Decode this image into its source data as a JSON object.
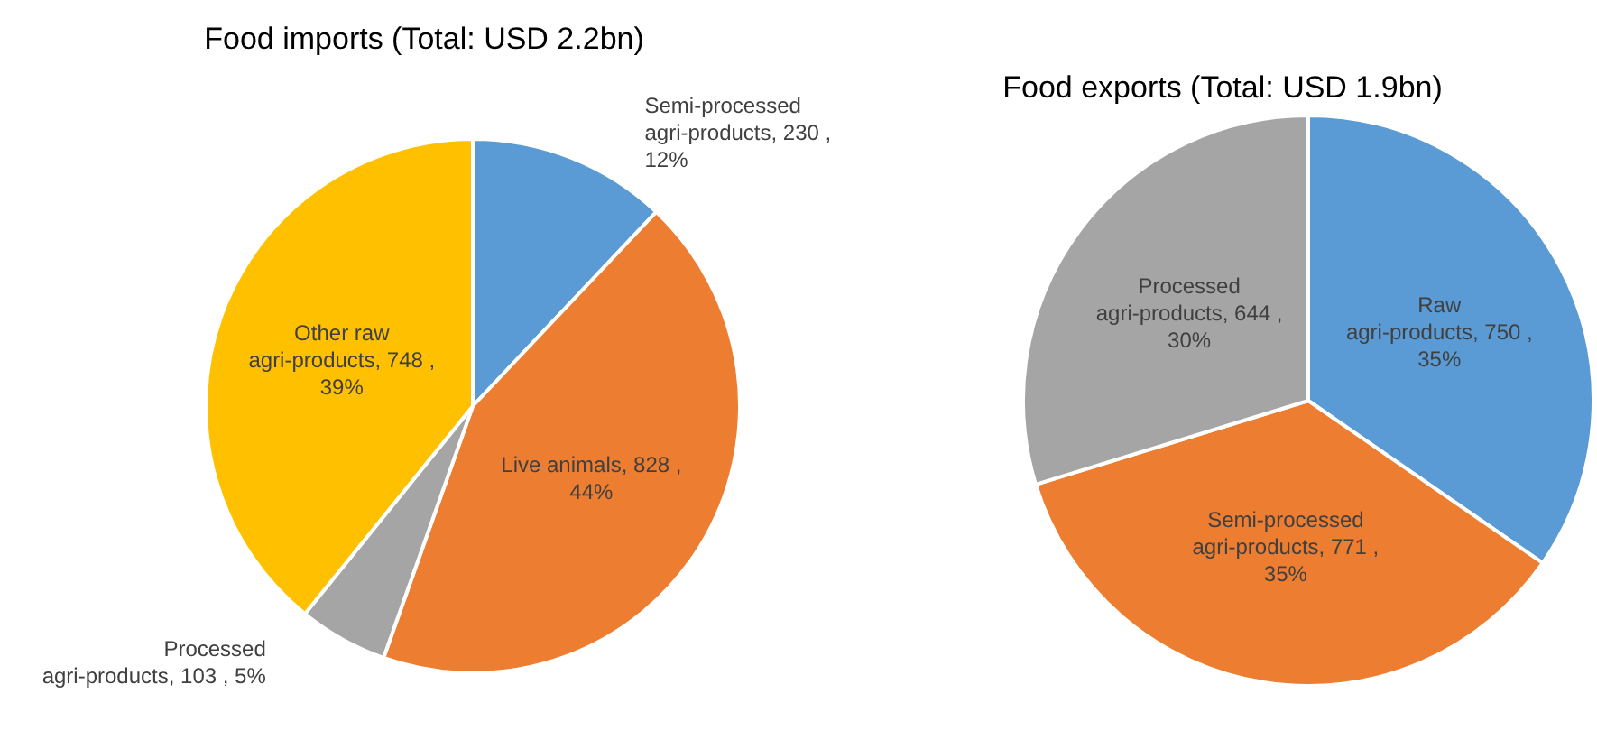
{
  "chart_data": [
    {
      "type": "pie",
      "title": "Food imports (Total: USD 2.2bn)",
      "categories": [
        "Semi-processed agri-products",
        "Live animals",
        "Processed agri-products",
        "Other raw agri-products"
      ],
      "values": [
        230,
        828,
        103,
        748
      ],
      "value_labels": [
        "230 , 12%",
        "828 , 44%",
        "103 , 5%",
        "748 , 39%"
      ],
      "colors": [
        "#5b9bd5",
        "#ed7d31",
        "#a5a5a5",
        "#ffc000"
      ]
    },
    {
      "type": "pie",
      "title": "Food exports (Total: USD 1.9bn)",
      "categories": [
        "Raw agri-products",
        "Semi-processed agri-products",
        "Processed agri-products"
      ],
      "values": [
        750,
        771,
        644
      ],
      "value_labels": [
        "750 , 35%",
        "771 , 35%",
        "644 , 30%"
      ],
      "colors": [
        "#5b9bd5",
        "#ed7d31",
        "#a5a5a5"
      ]
    }
  ]
}
